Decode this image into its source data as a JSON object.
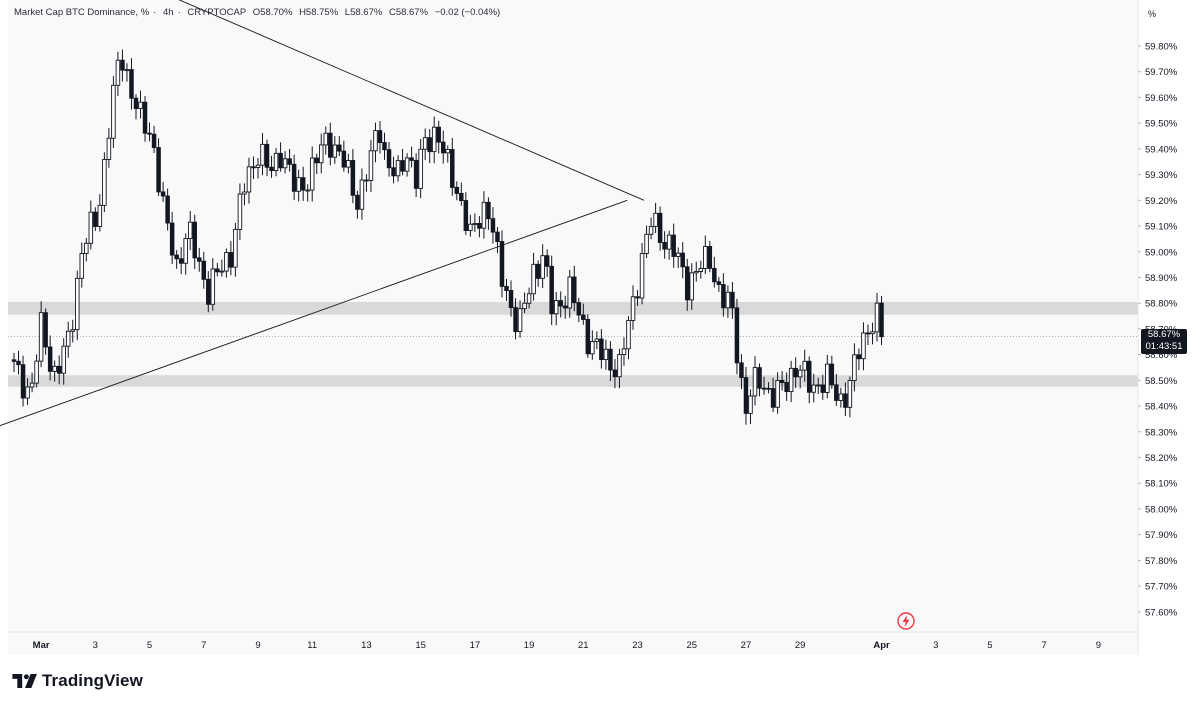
{
  "header": {
    "symbol": "Market Cap BTC Dominance, %",
    "interval": "4h",
    "source": "CRYPTOCAP",
    "open": "O58.70%",
    "high": "H58.75%",
    "low": "L58.67%",
    "close": "C58.67%",
    "change": "−0.02 (−0.04%)"
  },
  "price_scale_unit": "%",
  "last_price": {
    "value": "58.67%",
    "countdown": "01:43:51"
  },
  "brand": "TradingView",
  "icons": {
    "alert": "lightning-icon",
    "logo": "tradingview-logo-icon"
  },
  "colors": {
    "candle": "#131722",
    "zone": "#d9d9d9",
    "trendline": "#131722",
    "alert": "#f23645"
  },
  "chart_data": {
    "type": "candlestick",
    "title": "Market Cap BTC Dominance, %",
    "xlabel": "",
    "ylabel": "",
    "ylim": [
      57.55,
      59.93
    ],
    "y_ticks": [
      "59.80%",
      "59.70%",
      "59.60%",
      "59.50%",
      "59.40%",
      "59.30%",
      "59.20%",
      "59.10%",
      "59.00%",
      "58.90%",
      "58.80%",
      "58.70%",
      "58.60%",
      "58.50%",
      "58.40%",
      "58.30%",
      "58.20%",
      "58.10%",
      "58.00%",
      "57.90%",
      "57.80%",
      "57.70%",
      "57.60%"
    ],
    "x_ticks": [
      "Mar",
      "3",
      "5",
      "7",
      "9",
      "11",
      "13",
      "15",
      "17",
      "19",
      "21",
      "23",
      "25",
      "27",
      "29",
      "Apr",
      "3",
      "5",
      "7",
      "9"
    ],
    "x_tick_days": [
      1,
      3,
      5,
      7,
      9,
      11,
      13,
      15,
      17,
      19,
      21,
      23,
      25,
      27,
      29,
      32,
      34,
      36,
      38,
      40
    ],
    "grid": false,
    "path_day": [
      0.0,
      0.62,
      1.03,
      1.45,
      1.79,
      2.07,
      2.48,
      3.1,
      3.52,
      3.93,
      4.62,
      5.1,
      5.52,
      6.0,
      6.41,
      7.17,
      8.0,
      8.48,
      9.03,
      9.45,
      9.86,
      10.41,
      10.9,
      11.59,
      12.14,
      12.69,
      13.24,
      13.45,
      13.72,
      14.14,
      14.48,
      14.83,
      15.17,
      15.59,
      15.93,
      16.55,
      16.83,
      17.45,
      17.93,
      18.62,
      19.17,
      19.52,
      19.86,
      20.48,
      21.24,
      21.86,
      22.34,
      22.83,
      23.17,
      23.52,
      24.0,
      24.34,
      24.83,
      25.66,
      26.07,
      26.48,
      26.97,
      27.45,
      28.07,
      28.34,
      28.83,
      29.45,
      30.0,
      30.55,
      30.9,
      31.24,
      31.59,
      31.79,
      32.07
    ],
    "path_close": [
      58.55,
      58.45,
      58.72,
      58.52,
      58.58,
      58.68,
      59.0,
      59.15,
      59.5,
      59.78,
      59.52,
      59.45,
      59.15,
      58.95,
      59.08,
      58.85,
      59.0,
      59.25,
      59.4,
      59.3,
      59.4,
      59.23,
      59.3,
      59.45,
      59.35,
      59.2,
      59.38,
      59.52,
      59.35,
      59.28,
      59.4,
      59.28,
      59.42,
      59.48,
      59.35,
      59.18,
      59.05,
      59.2,
      58.92,
      58.7,
      58.93,
      58.98,
      58.77,
      58.85,
      58.65,
      58.58,
      58.55,
      58.8,
      58.98,
      59.12,
      59.05,
      59.0,
      58.88,
      58.98,
      58.82,
      58.78,
      58.38,
      58.52,
      58.42,
      58.48,
      58.55,
      58.48,
      58.5,
      58.42,
      58.5,
      58.65,
      58.72,
      58.75,
      58.67
    ],
    "trendlines": [
      {
        "from": [
          -0.3,
          60.27
        ],
        "to": [
          23.24,
          59.2
        ]
      },
      {
        "from": [
          -0.62,
          58.32
        ],
        "to": [
          22.62,
          59.2
        ]
      }
    ],
    "zones": [
      {
        "low": 58.755,
        "high": 58.805
      },
      {
        "low": 58.475,
        "high": 58.52
      }
    ],
    "last_close": 58.67
  }
}
